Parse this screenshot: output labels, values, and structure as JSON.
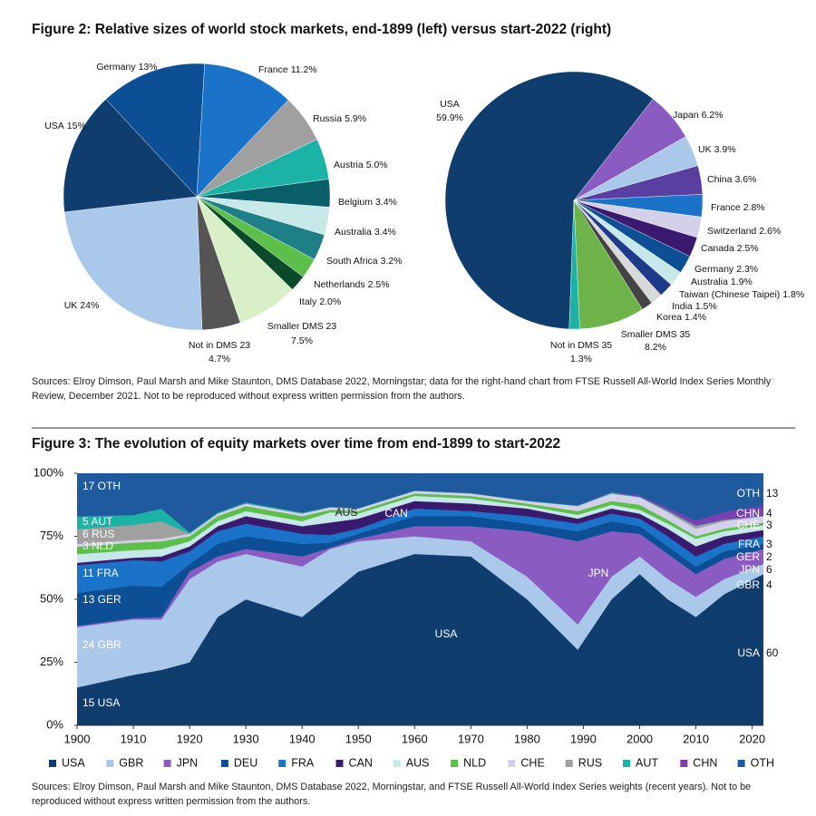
{
  "figure_2": {
    "title": "Figure 2: Relative sizes of world stock markets, end-1899 (left) versus start-2022 (right)",
    "sources": "Sources: Elroy Dimson, Paul Marsh and Mike Staunton, DMS Database 2022, Morningstar; data for the right-hand chart from FTSE Russell All-World Index Series Monthly Review, December 2021. Not to be reproduced without express written permission from the authors."
  },
  "figure_3": {
    "title": "Figure 3: The evolution of equity markets over time from end-1899 to start-2022",
    "sources": "Sources: Elroy Dimson, Paul Marsh and Mike Staunton, DMS Database 2022, Morningstar, and FTSE Russell All-World Index Series weights (recent years). Not to be reproduced without express written permission from the authors."
  },
  "chart_data": [
    {
      "type": "pie",
      "categories": [
        "Germany",
        "France",
        "Russia",
        "Austria",
        "Belgium",
        "Australia",
        "South Africa",
        "Netherlands",
        "Italy",
        "Smaller DMS 23",
        "Not in DMS 23",
        "UK",
        "USA"
      ],
      "values": [
        13,
        11.2,
        5.9,
        5.0,
        3.4,
        3.4,
        3.2,
        2.5,
        2.0,
        7.5,
        4.7,
        24,
        15
      ],
      "value_labels": [
        "13%",
        "11.2%",
        "5.9%",
        "5.0%",
        "3.4%",
        "3.4%",
        "3.2%",
        "2.5%",
        "2.0%",
        "7.5%",
        "4.7%",
        "24%",
        "15%"
      ],
      "colors": [
        "#0c4f94",
        "#1a73c9",
        "#a0a0a0",
        "#1ab3a6",
        "#0a5e6a",
        "#c6e8e8",
        "#1e7f86",
        "#5bbf4a",
        "#0a4a2a",
        "#d9efc8",
        "#555555",
        "#aac8ea",
        "#0f3d6e"
      ]
    },
    {
      "type": "pie",
      "categories": [
        "USA",
        "Japan",
        "UK",
        "China",
        "France",
        "Switzerland",
        "Canada",
        "Germany",
        "Australia",
        "Taiwan (Chinese Taipei)",
        "India",
        "Korea",
        "Smaller DMS 35",
        "Not in DMS 35"
      ],
      "values": [
        59.9,
        6.2,
        3.9,
        3.6,
        2.8,
        2.6,
        2.5,
        2.3,
        1.9,
        1.8,
        1.5,
        1.4,
        8.2,
        1.3
      ],
      "value_labels": [
        "59.9%",
        "6.2%",
        "3.9%",
        "3.6%",
        "2.8%",
        "2.6%",
        "2.5%",
        "2.3%",
        "1.9%",
        "1.8%",
        "1.5%",
        "1.4%",
        "8.2%",
        "1.3%"
      ],
      "colors": [
        "#0f3d6e",
        "#8a5cc2",
        "#aac8ea",
        "#5a3fa0",
        "#1a73c9",
        "#d4d0ea",
        "#3a1a6e",
        "#0c4f94",
        "#c6e8e8",
        "#1e3a8a",
        "#d8d8d8",
        "#444444",
        "#6db34a",
        "#1ab3a6"
      ]
    },
    {
      "type": "area",
      "stacked": true,
      "x": [
        1900,
        1910,
        1915,
        1920,
        1925,
        1930,
        1940,
        1945,
        1950,
        1960,
        1970,
        1980,
        1989,
        1995,
        2000,
        2005,
        2010,
        2015,
        2022
      ],
      "xlim": [
        1900,
        2022
      ],
      "xticks": [
        1900,
        1910,
        1920,
        1930,
        1940,
        1950,
        1960,
        1970,
        1980,
        1990,
        2000,
        2010,
        2020
      ],
      "ylim": [
        0,
        100
      ],
      "yticks": [
        {
          "value": 0,
          "label": "0%"
        },
        {
          "value": 25,
          "label": "25%"
        },
        {
          "value": 50,
          "label": "50%"
        },
        {
          "value": 75,
          "label": "75%"
        },
        {
          "value": 100,
          "label": "100%"
        }
      ],
      "series": [
        {
          "name": "USA",
          "color": "#0f3d6e",
          "values": [
            15,
            20,
            22,
            25,
            43,
            50,
            43,
            52,
            61,
            68,
            67,
            50,
            30,
            50,
            60,
            50,
            43,
            52,
            60
          ]
        },
        {
          "name": "GBR",
          "color": "#aac8ea",
          "values": [
            24,
            22,
            20,
            33,
            22,
            18,
            20,
            18,
            12,
            7,
            6,
            9,
            10,
            9,
            7,
            8,
            8,
            6,
            4
          ]
        },
        {
          "name": "JPN",
          "color": "#8a5cc2",
          "values": [
            0.5,
            0.5,
            1,
            3,
            2,
            2,
            4,
            0.5,
            1,
            4,
            6,
            18,
            33,
            18,
            9,
            10,
            9,
            8,
            6
          ]
        },
        {
          "name": "DEU",
          "color": "#0c4f94",
          "values": [
            13,
            13,
            12,
            3,
            5,
            5,
            5,
            2,
            2,
            4,
            4,
            3,
            4,
            4,
            3,
            3,
            3,
            3,
            2
          ]
        },
        {
          "name": "FRA",
          "color": "#1a73c9",
          "values": [
            11,
            10,
            10,
            5,
            5,
            5,
            4,
            3,
            2,
            3,
            2,
            3,
            3,
            3,
            3,
            4,
            4,
            3,
            3
          ]
        },
        {
          "name": "CAN",
          "color": "#3a1a6e",
          "values": [
            1,
            1,
            2,
            2,
            2,
            3,
            3,
            5,
            4,
            3,
            3,
            3,
            2,
            2,
            2,
            3,
            4,
            3,
            2.5
          ]
        },
        {
          "name": "AUS",
          "color": "#c6e8e8",
          "values": [
            3.4,
            3,
            3,
            2,
            2,
            2,
            2,
            4,
            2,
            2,
            2,
            1,
            1.5,
            1.5,
            1.5,
            2,
            3,
            2,
            1.9
          ]
        },
        {
          "name": "NLD",
          "color": "#5bbf4a",
          "values": [
            3,
            3,
            3,
            2,
            2,
            2,
            2,
            1,
            1,
            1,
            1,
            1,
            1.5,
            1.5,
            2,
            1.5,
            1,
            1,
            1
          ]
        },
        {
          "name": "CHE",
          "color": "#d4d0ea",
          "values": [
            1,
            1,
            1,
            1,
            1,
            1,
            1,
            1,
            1,
            1,
            1,
            1,
            2,
            3,
            3,
            3,
            3,
            3,
            2.6
          ]
        },
        {
          "name": "RUS",
          "color": "#a0a0a0",
          "values": [
            6,
            6,
            7,
            0,
            0,
            0,
            0,
            0,
            0,
            0,
            0,
            0,
            0,
            0,
            0,
            0.5,
            1,
            0.5,
            0
          ]
        },
        {
          "name": "AUT",
          "color": "#1ab3a6",
          "values": [
            5,
            4,
            5,
            0.5,
            0.5,
            0.5,
            0.5,
            0.2,
            0.2,
            0.2,
            0.2,
            0.2,
            0.3,
            0.3,
            0.2,
            0.3,
            0.2,
            0.1,
            0.1
          ]
        },
        {
          "name": "CHN",
          "color": "#7a3fb0",
          "values": [
            0,
            0,
            0,
            0,
            0,
            0,
            0,
            0,
            0,
            0,
            0,
            0,
            0,
            0.3,
            0.5,
            1,
            2,
            3,
            4
          ]
        },
        {
          "name": "OTH",
          "color": "#1f5a9e",
          "values": [
            17.1,
            16.5,
            14,
            23.5,
            15.5,
            11.5,
            15.5,
            13.3,
            13.8,
            6.8,
            7.8,
            10.8,
            12.7,
            7.4,
            8.8,
            13.7,
            18.8,
            15.4,
            12.9
          ]
        }
      ],
      "start_labels": [
        "15 USA",
        "24 GBR",
        "13 GER",
        "11 FRA",
        "3 NLD",
        "6 RUS",
        "5 AUT",
        "17 OTH"
      ],
      "end_labels": [
        {
          "code": "OTH",
          "value": "13"
        },
        {
          "code": "CHN",
          "value": "4"
        },
        {
          "code": "CHE",
          "value": "3"
        },
        {
          "code": "FRA",
          "value": "3"
        },
        {
          "code": "GER",
          "value": "2"
        },
        {
          "code": "JPN",
          "value": "6"
        },
        {
          "code": "GBR",
          "value": "4"
        },
        {
          "code": "USA",
          "value": "60"
        }
      ],
      "annotations": [
        "USA",
        "JPN",
        "AUS",
        "CAN"
      ]
    }
  ]
}
